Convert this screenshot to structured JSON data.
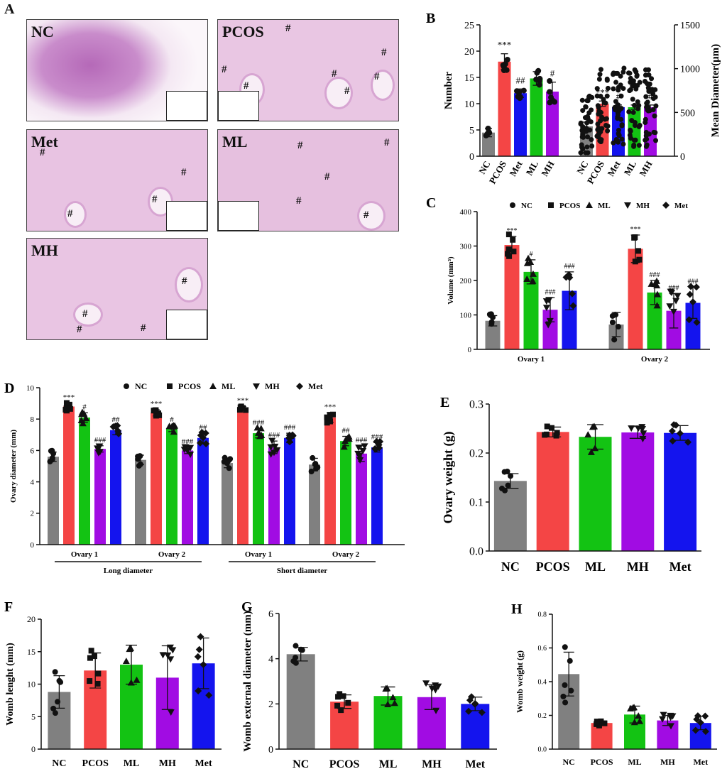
{
  "panel_A": {
    "letter": "A",
    "tiles": [
      {
        "label": "NC",
        "marks": []
      },
      {
        "label": "PCOS",
        "marks": [
          "#",
          "#",
          "#",
          "#",
          "#",
          "#",
          "#"
        ]
      },
      {
        "label": "Met",
        "marks": [
          "#",
          "#",
          "#",
          "#"
        ]
      },
      {
        "label": "ML",
        "marks": [
          "#",
          "#",
          "#",
          "#",
          "#"
        ]
      },
      {
        "label": "MH",
        "marks": [
          "#",
          "#",
          "#",
          "#"
        ]
      }
    ]
  },
  "colors": {
    "NC": "#808080",
    "PCOS": "#f44545",
    "ML": "#13c313",
    "MH": "#a10ce3",
    "Met": "#1414ee"
  },
  "chart_data": [
    {
      "id": "B",
      "letter": "B",
      "type": "bar",
      "ylabel": "Number",
      "y2label": "Mean Diameter(μm)",
      "ylim": [
        0,
        25
      ],
      "yticks": [
        0,
        5,
        10,
        15,
        20,
        25
      ],
      "y2lim": [
        0,
        1500
      ],
      "y2ticks": [
        0,
        500,
        1000,
        1500
      ],
      "series": [
        {
          "name": "Number",
          "categories": [
            "NC",
            "PCOS",
            "Met",
            "ML",
            "MH"
          ],
          "values": [
            4.5,
            18,
            12,
            14.8,
            12.3
          ],
          "errors": [
            0.8,
            1.5,
            0.8,
            1.3,
            1.8
          ],
          "annotations": [
            "",
            "***",
            "##",
            "",
            "#"
          ]
        },
        {
          "name": "Mean Diameter",
          "categories": [
            "NC",
            "PCOS",
            "Met",
            "ML",
            "MH"
          ],
          "values": [
            340,
            600,
            560,
            560,
            560
          ],
          "errors": [
            50,
            30,
            25,
            25,
            25
          ],
          "annotations": [
            "",
            "***",
            "#",
            "",
            "#"
          ]
        }
      ]
    },
    {
      "id": "C",
      "letter": "C",
      "type": "bar",
      "ylabel": "Volume (mm³)",
      "ylim": [
        0,
        400
      ],
      "yticks": [
        0,
        100,
        200,
        300,
        400
      ],
      "groups": [
        "Ovary 1",
        "Ovary 2"
      ],
      "legend": [
        "NC",
        "PCOS",
        "ML",
        "MH",
        "Met"
      ],
      "categories": [
        "NC",
        "PCOS",
        "ML",
        "MH",
        "Met"
      ],
      "values": [
        [
          83,
          303,
          225,
          115,
          170
        ],
        [
          72,
          292,
          165,
          112,
          135
        ]
      ],
      "errors": [
        [
          15,
          25,
          35,
          35,
          55
        ],
        [
          35,
          40,
          35,
          50,
          45
        ]
      ],
      "annotations": [
        [
          "",
          "***",
          "#",
          "###",
          "###"
        ],
        [
          "",
          "***",
          "###",
          "###",
          "###"
        ]
      ]
    },
    {
      "id": "D",
      "letter": "D",
      "type": "bar",
      "ylabel": "Ovary diameter (mm)",
      "ylim": [
        0,
        10
      ],
      "yticks": [
        0,
        2,
        4,
        6,
        8,
        10
      ],
      "groups": [
        "Ovary 1",
        "Ovary 2",
        "Ovary 1",
        "Ovary 2"
      ],
      "group_sets": [
        "Long diameter",
        "Short diameter"
      ],
      "legend": [
        "NC",
        "PCOS",
        "ML",
        "MH",
        "Met"
      ],
      "categories": [
        "NC",
        "PCOS",
        "ML",
        "MH",
        "Met"
      ],
      "values": [
        [
          5.6,
          8.8,
          8.1,
          6.1,
          7.3
        ],
        [
          5.4,
          8.4,
          7.4,
          6.0,
          6.8
        ],
        [
          5.2,
          8.7,
          7.1,
          6.2,
          6.8
        ],
        [
          5.1,
          8.1,
          6.6,
          5.8,
          6.2
        ]
      ],
      "errors": [
        [
          0.3,
          0.2,
          0.3,
          0.2,
          0.3
        ],
        [
          0.3,
          0.2,
          0.2,
          0.2,
          0.3
        ],
        [
          0.3,
          0.1,
          0.3,
          0.4,
          0.3
        ],
        [
          0.4,
          0.3,
          0.3,
          0.5,
          0.3
        ]
      ],
      "annotations": [
        [
          "",
          "***",
          "#",
          "###",
          "##"
        ],
        [
          "",
          "***",
          "#",
          "###",
          "##"
        ],
        [
          "",
          "***",
          "###",
          "###",
          "###"
        ],
        [
          "",
          "***",
          "##",
          "###",
          "###"
        ]
      ]
    },
    {
      "id": "E",
      "letter": "E",
      "type": "bar",
      "ylabel": "Ovary weight (g)",
      "ylim": [
        0,
        0.3
      ],
      "yticks": [
        "0.0",
        "0.1",
        "0.2",
        "0.3"
      ],
      "categories": [
        "NC",
        "PCOS",
        "ML",
        "MH",
        "Met"
      ],
      "values": [
        0.143,
        0.243,
        0.233,
        0.242,
        0.241
      ],
      "errors": [
        0.015,
        0.01,
        0.025,
        0.012,
        0.015
      ]
    },
    {
      "id": "F",
      "letter": "F",
      "type": "bar",
      "ylabel": "Womb lenght (mm)",
      "ylim": [
        0,
        20
      ],
      "yticks": [
        0,
        5,
        10,
        15,
        20
      ],
      "categories": [
        "NC",
        "PCOS",
        "ML",
        "MH",
        "Met"
      ],
      "values": [
        8.8,
        12.1,
        13.0,
        11.0,
        13.2
      ],
      "errors": [
        2.5,
        2.7,
        3.0,
        4.9,
        3.9
      ]
    },
    {
      "id": "G",
      "letter": "G",
      "type": "bar",
      "ylabel": "Womb external diameter (mm)",
      "ylim": [
        0,
        6
      ],
      "yticks": [
        0,
        2,
        4,
        6
      ],
      "categories": [
        "NC",
        "PCOS",
        "ML",
        "MH",
        "Met"
      ],
      "values": [
        4.2,
        2.1,
        2.35,
        2.3,
        2.0
      ],
      "errors": [
        0.3,
        0.3,
        0.4,
        0.55,
        0.3
      ]
    },
    {
      "id": "H",
      "letter": "H",
      "type": "bar",
      "ylabel": "Womb weight (g)",
      "ylim": [
        0,
        0.8
      ],
      "yticks": [
        "0.0",
        "0.2",
        "0.4",
        "0.6",
        "0.8"
      ],
      "categories": [
        "NC",
        "PCOS",
        "ML",
        "MH",
        "Met"
      ],
      "values": [
        0.445,
        0.155,
        0.205,
        0.17,
        0.155
      ],
      "errors": [
        0.13,
        0.012,
        0.05,
        0.03,
        0.04
      ]
    }
  ]
}
